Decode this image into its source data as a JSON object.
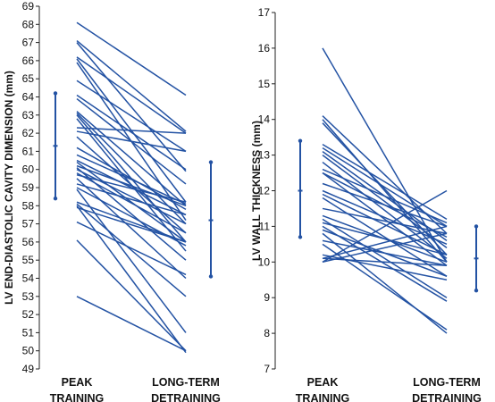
{
  "chart_data": [
    {
      "type": "line",
      "ylabel": "LV END-DIASTOLIC CAVITY DIMENSION (mm)",
      "categories": [
        "PEAK\nTRAINING",
        "LONG-TERM\nDETRAINING"
      ],
      "ylim": [
        49,
        69
      ],
      "yticks": [
        49,
        50,
        51,
        52,
        53,
        54,
        55,
        56,
        57,
        58,
        59,
        60,
        61,
        62,
        63,
        64,
        65,
        66,
        67,
        68,
        69
      ],
      "subjects": [
        [
          68.1,
          64.1
        ],
        [
          67.1,
          62.1
        ],
        [
          67.0,
          59.9
        ],
        [
          66.2,
          62.0
        ],
        [
          66.1,
          58.2
        ],
        [
          65.9,
          57.2
        ],
        [
          64.9,
          61.0
        ],
        [
          64.1,
          60.0
        ],
        [
          63.9,
          59.2
        ],
        [
          63.2,
          58.0
        ],
        [
          63.1,
          57.0
        ],
        [
          63.0,
          56.0
        ],
        [
          62.8,
          55.5
        ],
        [
          62.3,
          62.0
        ],
        [
          62.1,
          61.0
        ],
        [
          61.8,
          56.5
        ],
        [
          61.2,
          57.8
        ],
        [
          60.8,
          58.1
        ],
        [
          60.5,
          57.5
        ],
        [
          60.4,
          56.0
        ],
        [
          60.2,
          58.0
        ],
        [
          60.1,
          55.0
        ],
        [
          60.0,
          57.0
        ],
        [
          59.8,
          56.5
        ],
        [
          59.7,
          58.2
        ],
        [
          59.5,
          54.0
        ],
        [
          59.2,
          57.5
        ],
        [
          59.0,
          55.8
        ],
        [
          58.9,
          51.0
        ],
        [
          58.2,
          56.0
        ],
        [
          58.1,
          53.0
        ],
        [
          58.0,
          49.9
        ],
        [
          57.9,
          56.0
        ],
        [
          57.1,
          54.2
        ],
        [
          56.1,
          50.0
        ],
        [
          53.0,
          50.0
        ]
      ],
      "summary": [
        {
          "mean": 61.3,
          "low": 58.4,
          "high": 64.2
        },
        {
          "mean": 57.2,
          "low": 54.1,
          "high": 60.4
        }
      ]
    },
    {
      "type": "line",
      "ylabel": "LV WALL THICKNESS (mm)",
      "categories": [
        "PEAK\nTRAINING",
        "LONG-TERM\nDETRAINING"
      ],
      "ylim": [
        7,
        17
      ],
      "yticks": [
        7,
        8,
        9,
        10,
        11,
        12,
        13,
        14,
        15,
        16,
        17
      ],
      "subjects": [
        [
          16.0,
          10.0
        ],
        [
          14.1,
          10.8
        ],
        [
          14.0,
          10.0
        ],
        [
          13.9,
          10.2
        ],
        [
          13.3,
          11.2
        ],
        [
          13.2,
          11.0
        ],
        [
          13.1,
          10.6
        ],
        [
          13.0,
          10.4
        ],
        [
          12.8,
          10.1
        ],
        [
          12.6,
          11.1
        ],
        [
          12.5,
          9.9
        ],
        [
          12.2,
          11.0
        ],
        [
          12.0,
          10.5
        ],
        [
          11.9,
          10.2
        ],
        [
          11.8,
          9.6
        ],
        [
          11.5,
          10.8
        ],
        [
          11.3,
          10.0
        ],
        [
          11.2,
          9.0
        ],
        [
          11.1,
          10.2
        ],
        [
          11.0,
          8.9
        ],
        [
          10.9,
          9.6
        ],
        [
          10.8,
          8.0
        ],
        [
          10.6,
          9.9
        ],
        [
          10.5,
          8.1
        ],
        [
          10.2,
          9.5
        ],
        [
          10.1,
          9.9
        ],
        [
          10.0,
          10.8
        ],
        [
          10.0,
          12.0
        ],
        [
          10.1,
          11.0
        ],
        [
          12.5,
          10.7
        ]
      ],
      "summary": [
        {
          "mean": 12.0,
          "low": 10.7,
          "high": 13.4
        },
        {
          "mean": 10.1,
          "low": 9.2,
          "high": 11.0
        }
      ]
    }
  ]
}
